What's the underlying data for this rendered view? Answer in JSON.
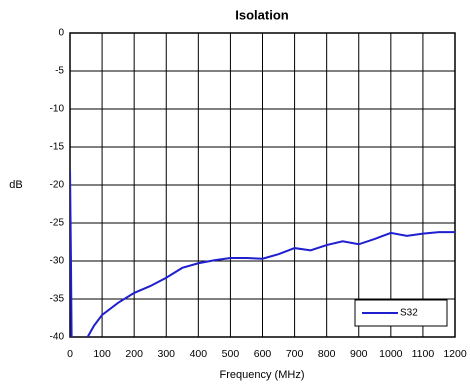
{
  "chart_data": {
    "type": "line",
    "title": "Isolation",
    "x_label": "Frequency (MHz)",
    "y_label": "dB",
    "x": [
      0,
      3,
      5,
      30,
      55,
      75,
      100,
      150,
      200,
      250,
      300,
      350,
      400,
      450,
      500,
      550,
      600,
      650,
      700,
      750,
      800,
      850,
      900,
      950,
      1000,
      1050,
      1100,
      1150,
      1200
    ],
    "series": [
      {
        "name": "S32",
        "color": "#1f1fd0",
        "values": [
          -18,
          -30,
          -40,
          null,
          -40,
          -38.5,
          -37.1,
          -35.5,
          -34.2,
          -33.3,
          -32.2,
          -30.9,
          -30.3,
          -29.9,
          -29.6,
          -29.6,
          -29.7,
          -29.1,
          -28.3,
          -28.6,
          -27.9,
          -27.4,
          -27.8,
          -27.1,
          -26.3,
          -26.7,
          -26.4,
          -26.2,
          -26.2
        ]
      }
    ],
    "xlim": [
      0,
      1200
    ],
    "xticks": [
      0,
      100,
      200,
      300,
      400,
      500,
      600,
      700,
      800,
      900,
      1000,
      1100,
      1200
    ],
    "ylim": [
      -40,
      0
    ],
    "yticks": [
      0,
      -5,
      -10,
      -15,
      -20,
      -25,
      -30,
      -35,
      -40
    ],
    "grid": true,
    "legend": "lower right"
  }
}
